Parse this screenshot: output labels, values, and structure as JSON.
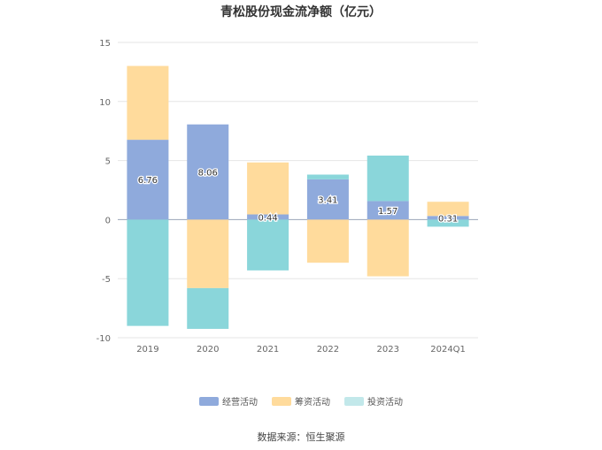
{
  "chart_data": {
    "type": "bar",
    "stacked": true,
    "title": "青松股份现金流净额（亿元）",
    "categories": [
      "2019",
      "2020",
      "2021",
      "2022",
      "2023",
      "2024Q1"
    ],
    "series": [
      {
        "name": "经营活动",
        "color": "#8faadc",
        "values": [
          6.76,
          8.06,
          0.44,
          3.41,
          1.57,
          0.31
        ]
      },
      {
        "name": "筹资活动",
        "color": "#ffdb9c",
        "values": [
          6.25,
          -5.8,
          4.4,
          -3.65,
          -4.8,
          1.2
        ]
      },
      {
        "name": "投资活动",
        "color": "#8ad6da",
        "values": [
          -9.0,
          -3.45,
          -4.3,
          0.4,
          3.85,
          -0.6
        ]
      }
    ],
    "data_labels": [
      "6.76",
      "8.06",
      "0.44",
      "3.41",
      "1.57",
      "0.31"
    ],
    "ylim": [
      -10,
      15
    ],
    "yticks": [
      15,
      10,
      5,
      0,
      -5,
      -10
    ],
    "grid": true,
    "legend_position": "bottom"
  },
  "legend": {
    "items": [
      {
        "label": "经营活动",
        "color": "#8faadc"
      },
      {
        "label": "筹资活动",
        "color": "#ffdb9c"
      },
      {
        "label": "投资活动",
        "color": "#c2e8ea"
      }
    ]
  },
  "footer": {
    "source": "数据来源：恒生聚源"
  }
}
